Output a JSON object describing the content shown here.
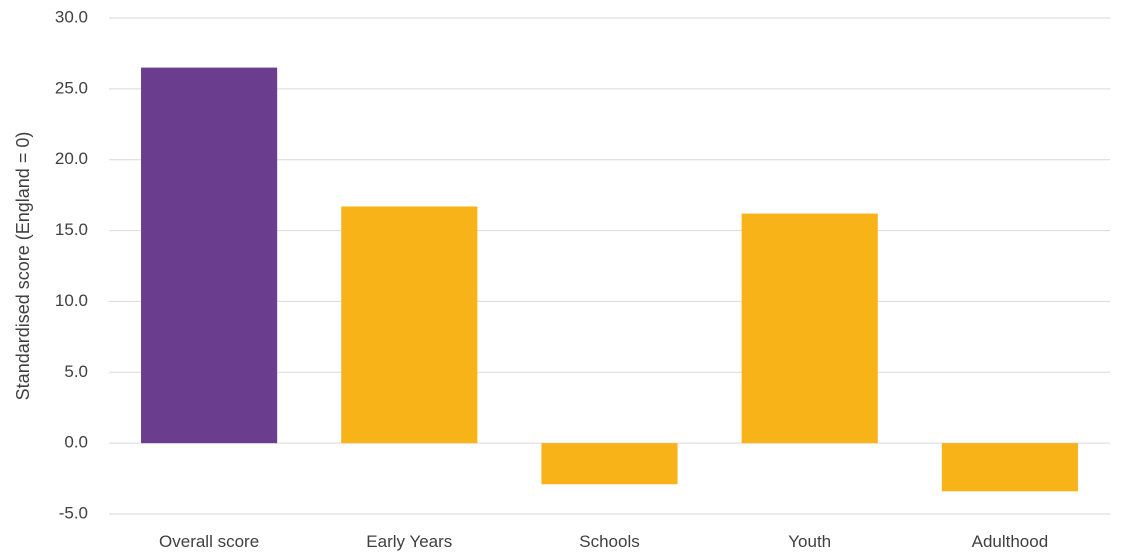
{
  "chart_data": {
    "type": "bar",
    "title": "",
    "xlabel": "",
    "ylabel": "Standardised score (England = 0)",
    "ylim": [
      -5,
      30
    ],
    "yticks": [
      30,
      25,
      20,
      15,
      10,
      5,
      0,
      -5
    ],
    "ytick_labels": [
      "30.0",
      "25.0",
      "20.0",
      "15.0",
      "10.0",
      "5.0",
      "0.0",
      "-5.0"
    ],
    "grid": true,
    "legend": "none",
    "categories": [
      "Overall score",
      "Early Years",
      "Schools",
      "Youth",
      "Adulthood"
    ],
    "values": [
      26.5,
      16.7,
      -2.9,
      16.2,
      -3.4
    ],
    "colors": [
      "#6a3d8f",
      "#f8b319",
      "#f8b319",
      "#f8b319",
      "#f8b319"
    ]
  }
}
